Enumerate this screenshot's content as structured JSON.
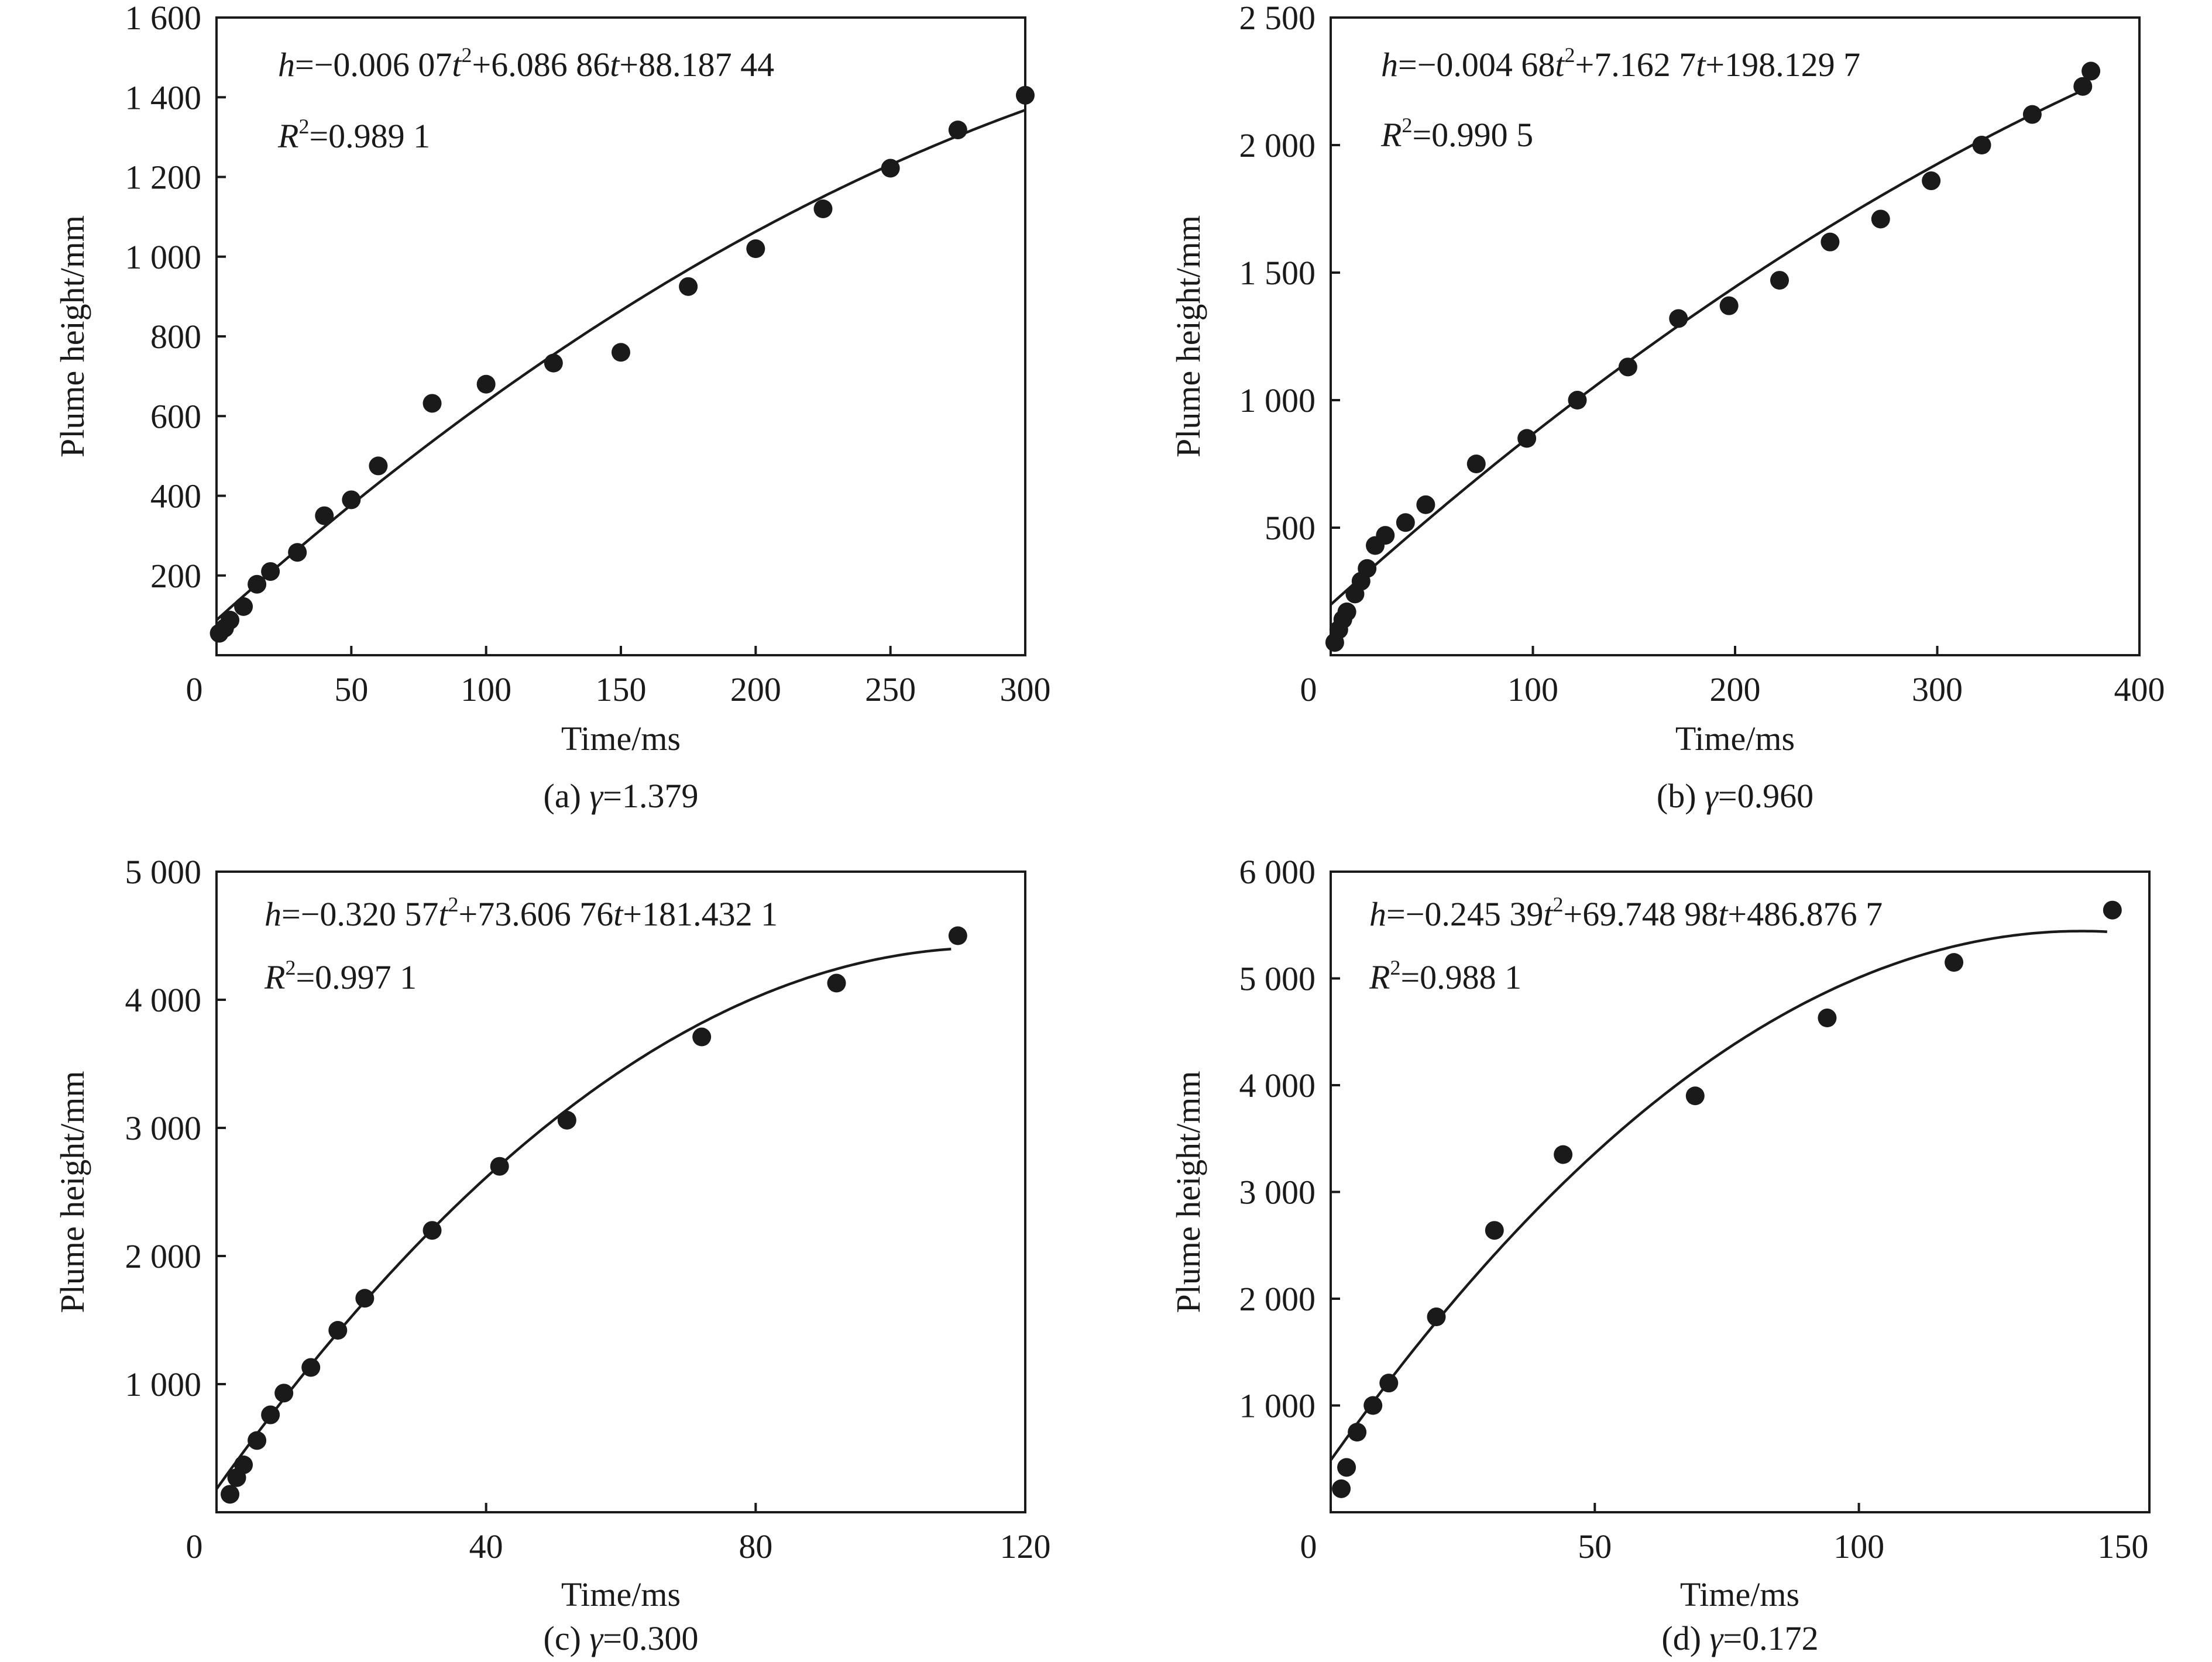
{
  "chart_data": [
    {
      "type": "scatter",
      "caption_prefix": "(a) ",
      "caption_symbol": "γ",
      "caption_value": "=1.379",
      "xlabel": "Time/ms",
      "ylabel": "Plume height/mm",
      "xlim": [
        0,
        300
      ],
      "ylim": [
        0,
        1600
      ],
      "xticks": [
        0,
        50,
        100,
        150,
        200,
        250,
        300
      ],
      "xtick_labels": [
        "0",
        "50",
        "100",
        "150",
        "200",
        "250",
        "300"
      ],
      "yticks": [
        200,
        400,
        600,
        800,
        1000,
        1200,
        1400,
        1600
      ],
      "ytick_labels": [
        "200",
        "400",
        "600",
        "800",
        "1 000",
        "1 200",
        "1 400",
        "1 600"
      ],
      "x_origin_label": "0",
      "equation": {
        "h": "h",
        "c2": "=−0.006 07",
        "t1": "t",
        "sup2": "2",
        "c1": "+6.086 86",
        "t2": "t",
        "c0": "+88.187 44",
        "r": "R",
        "r_sup": "2",
        "r_value": "=0.989 1"
      },
      "fit": {
        "a": -0.00607,
        "b": 6.08686,
        "c": 88.18744,
        "t_range": [
          0,
          300
        ]
      },
      "x": [
        1,
        3,
        5,
        10,
        15,
        20,
        30,
        40,
        50,
        60,
        80,
        100,
        125,
        150,
        175,
        200,
        225,
        250,
        275,
        300
      ],
      "y": [
        55,
        68,
        88,
        122,
        178,
        210,
        258,
        350,
        390,
        475,
        632,
        680,
        733,
        760,
        925,
        1020,
        1120,
        1222,
        1318,
        1405
      ]
    },
    {
      "type": "scatter",
      "caption_prefix": "(b) ",
      "caption_symbol": "γ",
      "caption_value": "=0.960",
      "xlabel": "Time/ms",
      "ylabel": "Plume height/mm",
      "xlim": [
        0,
        400
      ],
      "ylim": [
        0,
        2500
      ],
      "xticks": [
        0,
        100,
        200,
        300,
        400
      ],
      "xtick_labels": [
        "0",
        "100",
        "200",
        "300",
        "400"
      ],
      "yticks": [
        500,
        1000,
        1500,
        2000,
        2500
      ],
      "ytick_labels": [
        "500",
        "1 000",
        "1 500",
        "2 000",
        "2 500"
      ],
      "x_origin_label": "0",
      "equation": {
        "h": "h",
        "c2": "=−0.004 68",
        "t1": "t",
        "sup2": "2",
        "c1": "+7.162 7",
        "t2": "t",
        "c0": "+198.129 7",
        "r": "R",
        "r_sup": "2",
        "r_value": "=0.990 5"
      },
      "fit": {
        "a": -0.00468,
        "b": 7.1627,
        "c": 198.1297,
        "t_range": [
          0,
          370
        ]
      },
      "x": [
        2,
        4,
        6,
        8,
        12,
        15,
        18,
        22,
        27,
        37,
        47,
        72,
        97,
        122,
        147,
        172,
        197,
        222,
        247,
        272,
        297,
        322,
        347,
        372,
        376
      ],
      "y": [
        50,
        100,
        140,
        170,
        240,
        290,
        340,
        430,
        470,
        520,
        590,
        750,
        850,
        1000,
        1130,
        1320,
        1370,
        1470,
        1620,
        1710,
        1860,
        2000,
        2120,
        2230,
        2290
      ]
    },
    {
      "type": "scatter",
      "caption_prefix": "(c) ",
      "caption_symbol": "γ",
      "caption_value": "=0.300",
      "xlabel": "Time/ms",
      "ylabel": "Plume height/mm",
      "xlim": [
        0,
        120
      ],
      "ylim": [
        0,
        5000
      ],
      "xticks": [
        0,
        40,
        80,
        120
      ],
      "xtick_labels": [
        "0",
        "40",
        "80",
        "120"
      ],
      "yticks": [
        1000,
        2000,
        3000,
        4000,
        5000
      ],
      "ytick_labels": [
        "1 000",
        "2 000",
        "3 000",
        "4 000",
        "5 000"
      ],
      "x_origin_label": "0",
      "equation": {
        "h": "h",
        "c2": "=−0.320 57",
        "t1": "t",
        "sup2": "2",
        "c1": "+73.606 76",
        "t2": "t",
        "c0": "+181.432 1",
        "r": "R",
        "r_sup": "2",
        "r_value": "=0.997 1"
      },
      "fit": {
        "a": -0.32057,
        "b": 73.60676,
        "c": 181.4321,
        "t_range": [
          0,
          109
        ]
      },
      "x": [
        2,
        3,
        4,
        6,
        8,
        10,
        14,
        18,
        22,
        32,
        42,
        52,
        72,
        92,
        110
      ],
      "y": [
        140,
        270,
        370,
        560,
        760,
        930,
        1130,
        1420,
        1670,
        2200,
        2700,
        3060,
        3710,
        4130,
        4500
      ]
    },
    {
      "type": "scatter",
      "caption_prefix": "(d) ",
      "caption_symbol": "γ",
      "caption_value": "=0.172",
      "xlabel": "Time/ms",
      "ylabel": "Plume height/mm",
      "xlim": [
        0,
        155
      ],
      "ylim": [
        0,
        6000
      ],
      "xticks": [
        0,
        50,
        100,
        150
      ],
      "xtick_labels": [
        "0",
        "50",
        "100",
        "150"
      ],
      "yticks": [
        1000,
        2000,
        3000,
        4000,
        5000,
        6000
      ],
      "ytick_labels": [
        "1 000",
        "2 000",
        "3 000",
        "4 000",
        "5 000",
        "6 000"
      ],
      "x_origin_label": "0",
      "equation": {
        "h": "h",
        "c2": "=−0.245 39",
        "t1": "t",
        "sup2": "2",
        "c1": "+69.748 98",
        "t2": "t",
        "c0": "+486.876 7",
        "r": "R",
        "r_sup": "2",
        "r_value": "=0.988 1"
      },
      "fit": {
        "a": -0.24539,
        "b": 69.74898,
        "c": 486.8767,
        "t_range": [
          0,
          147
        ]
      },
      "x": [
        2,
        3,
        5,
        8,
        11,
        20,
        31,
        44,
        69,
        94,
        118,
        148
      ],
      "y": [
        220,
        420,
        750,
        1000,
        1210,
        1830,
        2640,
        3350,
        3900,
        4630,
        5150,
        5640
      ]
    }
  ]
}
